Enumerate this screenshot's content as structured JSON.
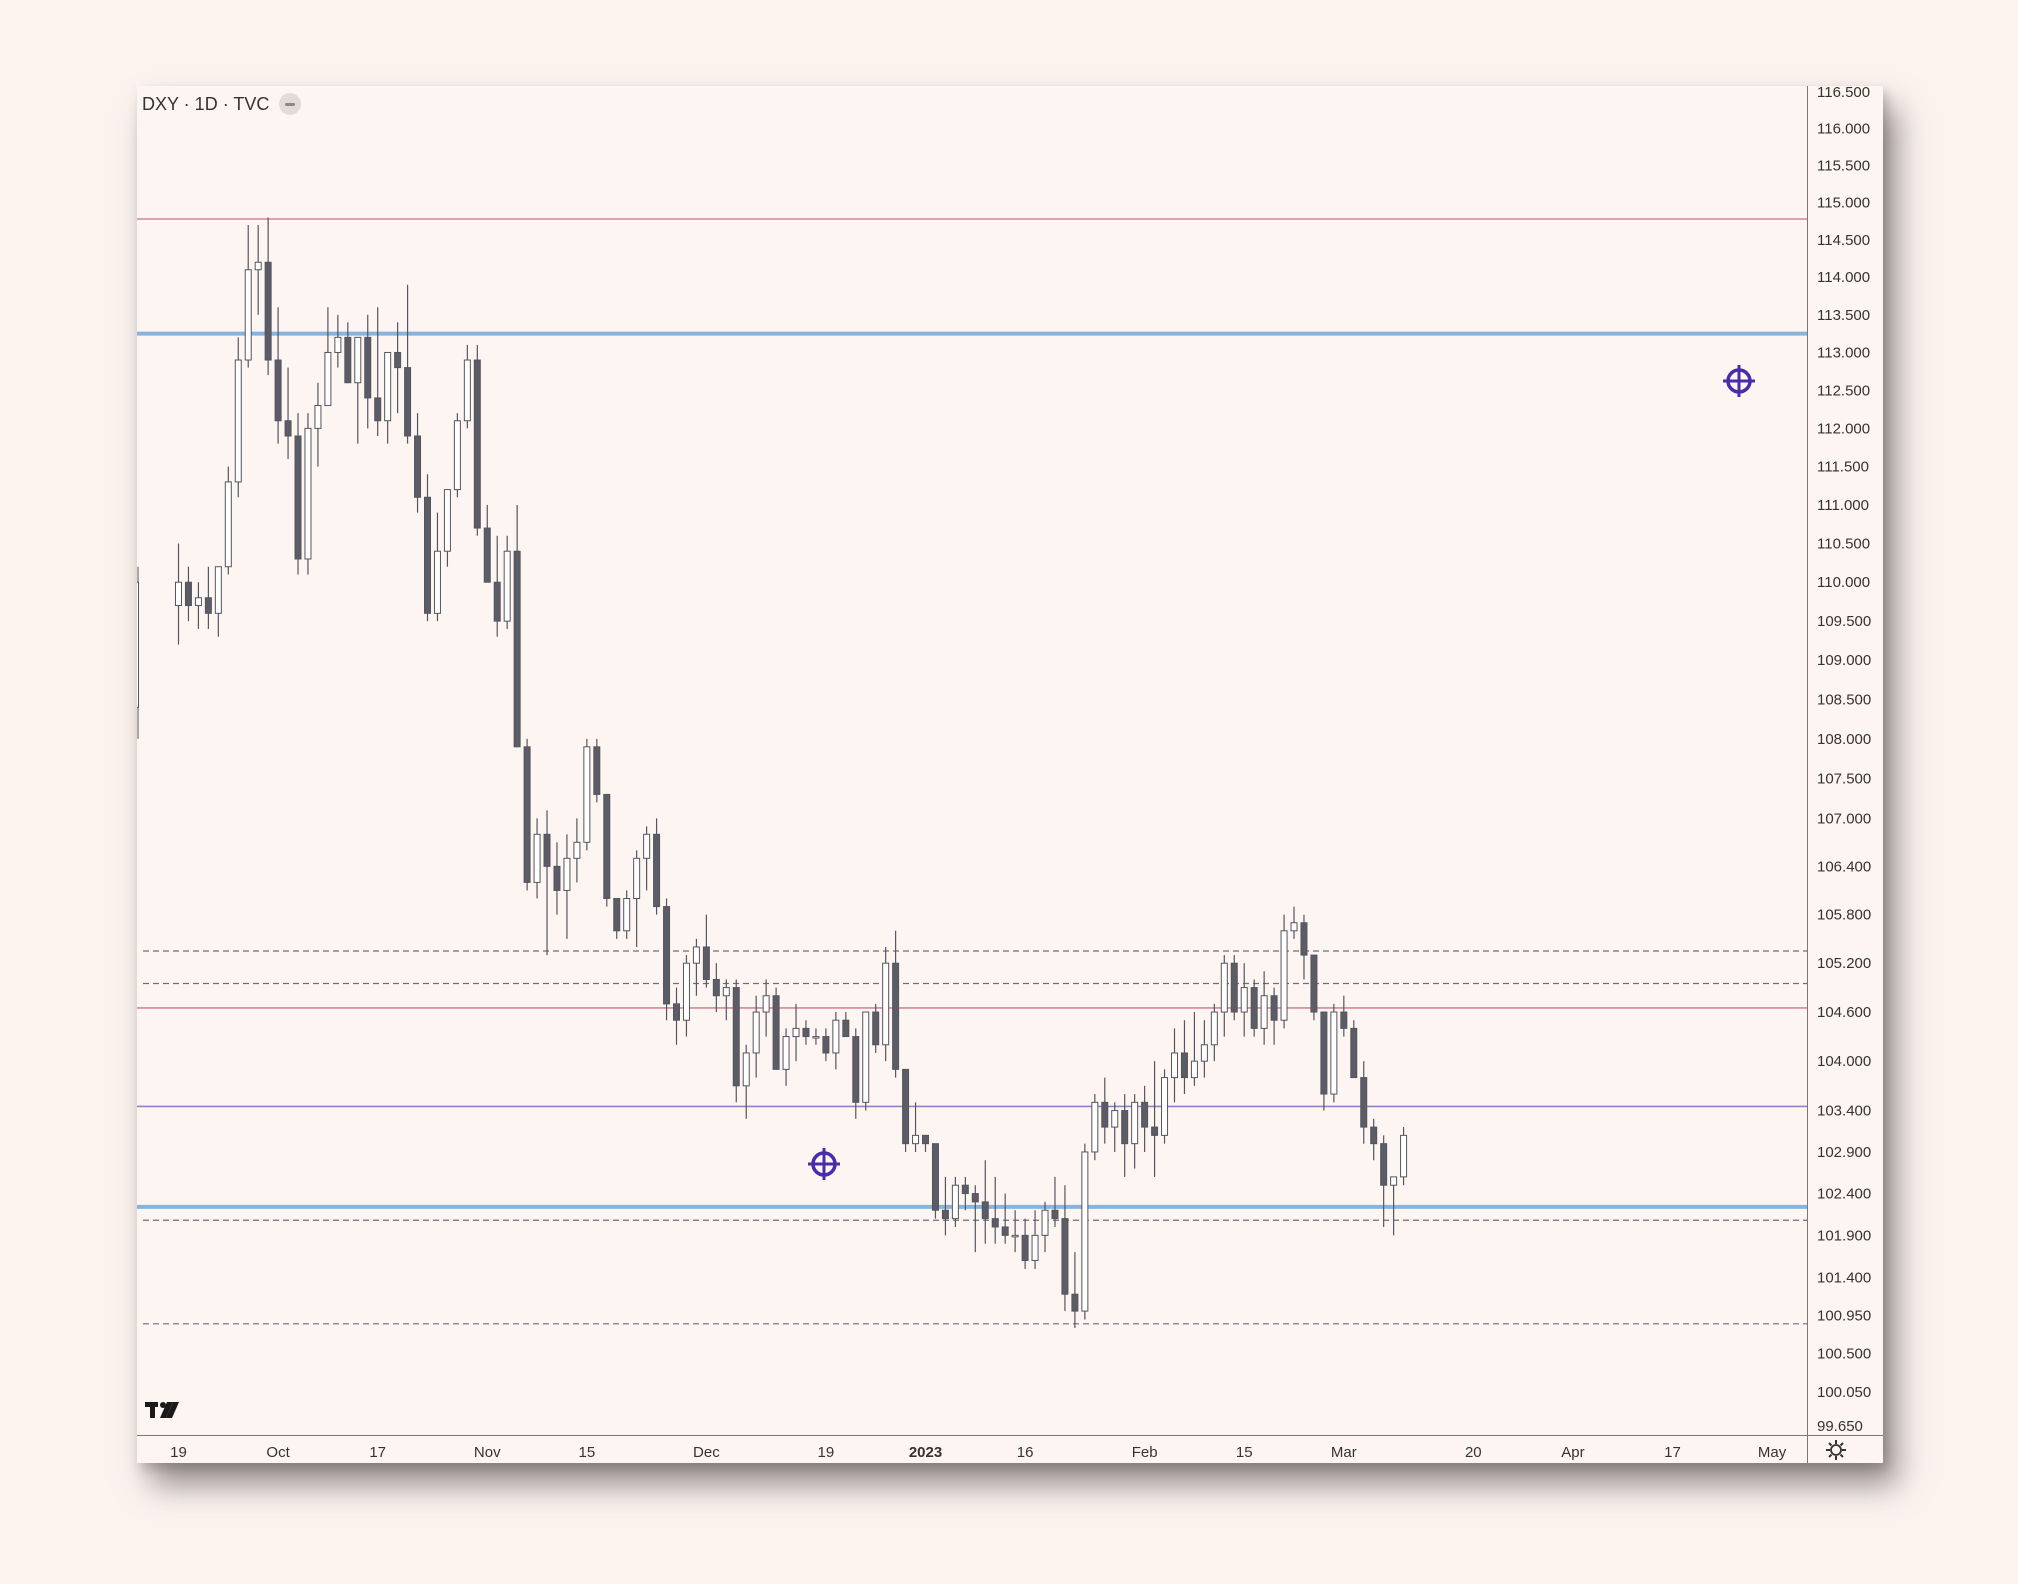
{
  "header": {
    "symbol": "DXY · 1D · TVC"
  },
  "colors": {
    "background": "#fdf5f1",
    "candle_bull_fill": "#ffffff",
    "candle_bear_fill": "#5c5c66",
    "candle_wick": "#55555f",
    "resistance_blue": "#87b4dc",
    "red_line": "#d7879a",
    "purple_line": "#8f80c8",
    "dashed_line": "#6e6e7a",
    "target_icon": "#4a2ca8"
  },
  "icons": [
    "collapse-icon",
    "tradingview-logo",
    "target-icon",
    "settings-gear-icon"
  ],
  "chart_data": {
    "type": "candlestick",
    "symbol": "DXY",
    "interval": "1D",
    "source": "TVC",
    "y_scale": "log",
    "ylim": [
      99.65,
      116.5
    ],
    "price_axis_labels": [
      "116.500",
      "116.000",
      "115.500",
      "115.000",
      "114.500",
      "114.000",
      "113.500",
      "113.000",
      "112.500",
      "112.000",
      "111.500",
      "111.000",
      "110.500",
      "110.000",
      "109.500",
      "109.000",
      "108.500",
      "108.000",
      "107.500",
      "107.000",
      "106.400",
      "105.800",
      "105.200",
      "104.600",
      "104.000",
      "103.400",
      "102.900",
      "102.400",
      "101.900",
      "101.400",
      "100.950",
      "100.500",
      "100.050",
      "99.650"
    ],
    "time_axis_labels": [
      {
        "label": "19",
        "bar": 0
      },
      {
        "label": "Oct",
        "bar": 10
      },
      {
        "label": "17",
        "bar": 20
      },
      {
        "label": "Nov",
        "bar": 31
      },
      {
        "label": "15",
        "bar": 41
      },
      {
        "label": "Dec",
        "bar": 53
      },
      {
        "label": "19",
        "bar": 65
      },
      {
        "label": "2023",
        "bar": 75,
        "bold": true
      },
      {
        "label": "16",
        "bar": 85
      },
      {
        "label": "Feb",
        "bar": 97
      },
      {
        "label": "15",
        "bar": 107
      },
      {
        "label": "Mar",
        "bar": 117
      },
      {
        "label": "20",
        "bar": 130
      },
      {
        "label": "Apr",
        "bar": 140
      },
      {
        "label": "17",
        "bar": 150
      },
      {
        "label": "May",
        "bar": 160
      }
    ],
    "horizontal_levels": [
      {
        "price": 114.78,
        "style": "solid",
        "color": "red"
      },
      {
        "price": 113.25,
        "style": "solid",
        "color": "blue",
        "thick": true
      },
      {
        "price": 105.35,
        "style": "dashed"
      },
      {
        "price": 104.95,
        "style": "dashed"
      },
      {
        "price": 104.65,
        "style": "solid",
        "color": "red"
      },
      {
        "price": 103.45,
        "style": "solid",
        "color": "purple"
      },
      {
        "price": 102.24,
        "style": "solid",
        "color": "blue",
        "thick": true
      },
      {
        "price": 102.08,
        "style": "dashed"
      },
      {
        "price": 100.85,
        "style": "dashed"
      }
    ],
    "ohlc": [
      [
        109.7,
        110.5,
        109.2,
        110.0
      ],
      [
        110.0,
        110.2,
        109.5,
        109.7
      ],
      [
        109.7,
        110.0,
        109.4,
        109.8
      ],
      [
        109.8,
        110.2,
        109.4,
        109.6
      ],
      [
        109.6,
        110.2,
        109.3,
        110.2
      ],
      [
        110.2,
        111.5,
        110.1,
        111.3
      ],
      [
        111.3,
        113.2,
        111.1,
        112.9
      ],
      [
        112.9,
        114.7,
        112.8,
        114.1
      ],
      [
        114.1,
        114.7,
        113.5,
        114.2
      ],
      [
        114.2,
        114.8,
        112.7,
        112.9
      ],
      [
        112.9,
        113.6,
        111.8,
        112.1
      ],
      [
        112.1,
        112.8,
        111.6,
        111.9
      ],
      [
        111.9,
        112.2,
        110.1,
        110.3
      ],
      [
        110.3,
        112.2,
        110.1,
        112.0
      ],
      [
        112.0,
        112.6,
        111.5,
        112.3
      ],
      [
        112.3,
        113.6,
        112.3,
        113.0
      ],
      [
        113.0,
        113.5,
        112.8,
        113.2
      ],
      [
        113.2,
        113.4,
        112.7,
        112.6
      ],
      [
        112.6,
        113.2,
        111.8,
        113.2
      ],
      [
        113.2,
        113.5,
        112.0,
        112.4
      ],
      [
        112.4,
        113.6,
        111.9,
        112.1
      ],
      [
        112.1,
        113.0,
        111.8,
        113.0
      ],
      [
        113.0,
        113.4,
        112.2,
        112.8
      ],
      [
        112.8,
        113.9,
        111.8,
        111.9
      ],
      [
        111.9,
        112.2,
        110.9,
        111.1
      ],
      [
        111.1,
        111.4,
        109.5,
        109.6
      ],
      [
        109.6,
        110.9,
        109.5,
        110.4
      ],
      [
        110.4,
        111.2,
        110.2,
        111.2
      ],
      [
        111.2,
        112.2,
        111.1,
        112.1
      ],
      [
        112.1,
        113.1,
        112.0,
        112.9
      ],
      [
        112.9,
        113.1,
        110.6,
        110.7
      ],
      [
        110.7,
        111.0,
        110.0,
        110.0
      ],
      [
        110.0,
        110.6,
        109.3,
        109.5
      ],
      [
        109.5,
        110.6,
        109.4,
        110.4
      ],
      [
        110.4,
        111.0,
        108.0,
        107.9
      ],
      [
        107.9,
        108.0,
        106.1,
        106.2
      ],
      [
        106.2,
        107.0,
        106.0,
        106.8
      ],
      [
        106.8,
        107.1,
        105.3,
        106.4
      ],
      [
        106.4,
        106.7,
        105.8,
        106.1
      ],
      [
        106.1,
        106.8,
        105.5,
        106.5
      ],
      [
        106.5,
        107.0,
        106.2,
        106.7
      ],
      [
        106.7,
        108.0,
        106.6,
        107.9
      ],
      [
        107.9,
        108.0,
        107.2,
        107.3
      ],
      [
        107.3,
        107.3,
        105.9,
        106.0
      ],
      [
        106.0,
        106.0,
        105.5,
        105.6
      ],
      [
        105.6,
        106.1,
        105.5,
        106.0
      ],
      [
        106.0,
        106.6,
        105.4,
        106.5
      ],
      [
        106.5,
        106.9,
        106.1,
        106.8
      ],
      [
        106.8,
        107.0,
        105.8,
        105.9
      ],
      [
        105.9,
        106.0,
        104.5,
        104.7
      ],
      [
        104.7,
        104.9,
        104.2,
        104.5
      ],
      [
        104.5,
        105.3,
        104.3,
        105.2
      ],
      [
        105.2,
        105.5,
        104.8,
        105.4
      ],
      [
        105.4,
        105.8,
        104.9,
        105.0
      ],
      [
        105.0,
        105.2,
        104.6,
        104.8
      ],
      [
        104.8,
        105.0,
        104.5,
        104.9
      ],
      [
        104.9,
        105.0,
        103.5,
        103.7
      ],
      [
        103.7,
        104.2,
        103.3,
        104.1
      ],
      [
        104.1,
        104.8,
        103.8,
        104.6
      ],
      [
        104.6,
        105.0,
        104.3,
        104.8
      ],
      [
        104.8,
        104.9,
        103.9,
        103.9
      ],
      [
        103.9,
        104.4,
        103.7,
        104.3
      ],
      [
        104.3,
        104.7,
        104.0,
        104.4
      ],
      [
        104.4,
        104.5,
        104.2,
        104.3
      ],
      [
        104.3,
        104.4,
        104.2,
        104.3
      ],
      [
        104.3,
        104.4,
        104.0,
        104.1
      ],
      [
        104.1,
        104.6,
        103.9,
        104.5
      ],
      [
        104.5,
        104.6,
        104.3,
        104.3
      ],
      [
        104.3,
        104.4,
        103.3,
        103.5
      ],
      [
        103.5,
        104.6,
        103.4,
        104.6
      ],
      [
        104.6,
        104.7,
        104.1,
        104.2
      ],
      [
        104.2,
        105.4,
        104.0,
        105.2
      ],
      [
        105.2,
        105.6,
        103.8,
        103.9
      ],
      [
        103.9,
        103.9,
        102.9,
        103.0
      ],
      [
        103.0,
        103.5,
        102.9,
        103.1
      ],
      [
        103.1,
        103.1,
        102.9,
        103.0
      ],
      [
        103.0,
        103.0,
        102.1,
        102.2
      ],
      [
        102.2,
        102.6,
        101.9,
        102.1
      ],
      [
        102.1,
        102.6,
        102.0,
        102.5
      ],
      [
        102.5,
        102.6,
        102.2,
        102.4
      ],
      [
        102.4,
        102.5,
        101.7,
        102.3
      ],
      [
        102.3,
        102.8,
        101.8,
        102.1
      ],
      [
        102.1,
        102.6,
        101.8,
        102.0
      ],
      [
        102.0,
        102.4,
        101.8,
        101.9
      ],
      [
        101.9,
        102.2,
        101.7,
        101.9
      ],
      [
        101.9,
        102.1,
        101.5,
        101.6
      ],
      [
        101.6,
        102.2,
        101.5,
        101.9
      ],
      [
        101.9,
        102.3,
        101.7,
        102.2
      ],
      [
        102.2,
        102.6,
        102.0,
        102.1
      ],
      [
        102.1,
        102.5,
        101.0,
        101.2
      ],
      [
        101.2,
        101.7,
        100.8,
        101.0
      ],
      [
        101.0,
        103.0,
        100.9,
        102.9
      ],
      [
        102.9,
        103.6,
        102.8,
        103.5
      ],
      [
        103.5,
        103.8,
        103.0,
        103.2
      ],
      [
        103.2,
        103.5,
        102.9,
        103.4
      ],
      [
        103.4,
        103.6,
        102.6,
        103.0
      ],
      [
        103.0,
        103.6,
        102.7,
        103.5
      ],
      [
        103.5,
        103.7,
        102.9,
        103.2
      ],
      [
        103.2,
        104.0,
        102.6,
        103.1
      ],
      [
        103.1,
        103.9,
        103.0,
        103.8
      ],
      [
        103.8,
        104.4,
        103.5,
        104.1
      ],
      [
        104.1,
        104.5,
        103.6,
        103.8
      ],
      [
        103.8,
        104.6,
        103.7,
        104.0
      ],
      [
        104.0,
        104.5,
        103.8,
        104.2
      ],
      [
        104.2,
        104.7,
        104.0,
        104.6
      ],
      [
        104.6,
        105.3,
        104.3,
        105.2
      ],
      [
        105.2,
        105.3,
        104.5,
        104.6
      ],
      [
        104.6,
        105.2,
        104.3,
        104.9
      ],
      [
        104.9,
        105.0,
        104.3,
        104.4
      ],
      [
        104.4,
        105.1,
        104.2,
        104.8
      ],
      [
        104.8,
        104.9,
        104.2,
        104.5
      ],
      [
        104.5,
        105.8,
        104.4,
        105.6
      ],
      [
        105.6,
        105.9,
        105.5,
        105.7
      ],
      [
        105.7,
        105.8,
        105.0,
        105.3
      ],
      [
        105.3,
        105.3,
        104.5,
        104.6
      ],
      [
        104.6,
        104.6,
        103.4,
        103.6
      ],
      [
        103.6,
        104.7,
        103.5,
        104.6
      ],
      [
        104.6,
        104.8,
        104.3,
        104.4
      ],
      [
        104.4,
        104.5,
        103.8,
        103.8
      ],
      [
        103.8,
        104.0,
        103.0,
        103.2
      ],
      [
        103.2,
        103.3,
        102.8,
        103.0
      ],
      [
        103.0,
        103.1,
        102.0,
        102.5
      ],
      [
        102.5,
        102.6,
        101.9,
        102.6
      ],
      [
        102.6,
        103.2,
        102.5,
        103.1
      ]
    ]
  }
}
